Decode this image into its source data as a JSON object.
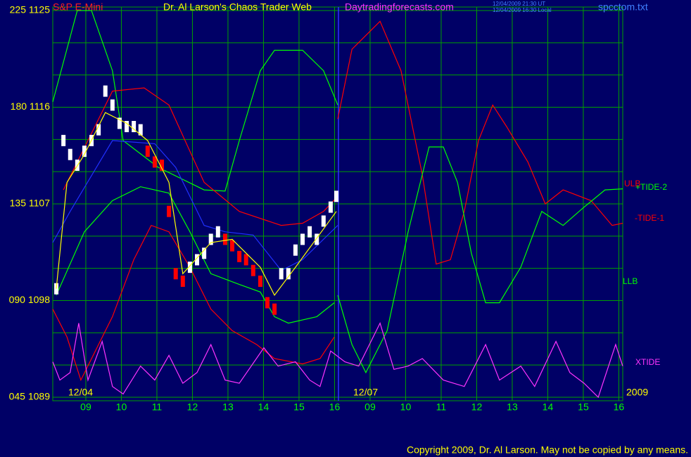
{
  "chart_data": {
    "type": "line",
    "title": "S&P E-Mini",
    "subtitle": "Dr. Al Larson's Chaos Trader Web",
    "site": "Daytradingforecasts.com",
    "timestamp_ut": "12/04/2009 21:30 UT",
    "timestamp_local": "12/04/2009 16:30 Local",
    "file": "spcctom.txt",
    "date_labels": [
      "12/04",
      "12/07"
    ],
    "year_label": "2009",
    "copyright": "Copyright 2009, Dr. Al Larson. May not be copied by any means.",
    "xlim": [
      -0.93,
      15.11
    ],
    "xticks": [
      {
        "value": 0,
        "label": "09"
      },
      {
        "value": 1,
        "label": "10"
      },
      {
        "value": 2,
        "label": "11"
      },
      {
        "value": 3,
        "label": "12"
      },
      {
        "value": 4,
        "label": "13"
      },
      {
        "value": 5,
        "label": "14"
      },
      {
        "value": 6,
        "label": "15"
      },
      {
        "value": 7,
        "label": "16"
      },
      {
        "value": 8,
        "label": "09"
      },
      {
        "value": 9,
        "label": "10"
      },
      {
        "value": 10,
        "label": "11"
      },
      {
        "value": 11,
        "label": "12"
      },
      {
        "value": 12,
        "label": "13"
      },
      {
        "value": 13,
        "label": "14"
      },
      {
        "value": 14,
        "label": "15"
      },
      {
        "value": 15,
        "label": "16"
      }
    ],
    "ylim": [
      1089,
      1125
    ],
    "yticks": [
      {
        "value": 1125,
        "label": "225 1125"
      },
      {
        "value": 1116,
        "label": "180 1116"
      },
      {
        "value": 1107,
        "label": "135 1107"
      },
      {
        "value": 1098,
        "label": "090 1098"
      },
      {
        "value": 1089,
        "label": "045 1089"
      }
    ],
    "ygrid": [
      1089,
      1092,
      1095,
      1098,
      1101,
      1104,
      1107,
      1110,
      1113,
      1116,
      1119,
      1122,
      1125
    ],
    "grid": true,
    "grid_color": "#00a000",
    "series": [
      {
        "color": "#00ff00",
        "style": "line",
        "x": [
          -0.93,
          -0.24,
          0.16,
          0.75,
          1.05,
          2.04,
          3.33,
          3.92,
          4.32,
          4.91,
          5.31,
          6.1,
          6.69,
          7.09
        ],
        "values": [
          1116.5,
          1125,
          1125,
          1119.4,
          1112.9,
          1110.4,
          1108.3,
          1108.2,
          1112.9,
          1119.4,
          1121.3,
          1121.3,
          1119.4,
          1116.2
        ]
      },
      {
        "name": "ULB",
        "color": "#ff0000",
        "style": "line",
        "x": [
          -0.63,
          0.75,
          1.64,
          2.34,
          2.93,
          3.33,
          4.32,
          5.5,
          6.1,
          6.69,
          7.09
        ],
        "values": [
          1108.3,
          1117.5,
          1117.8,
          1116.2,
          1111.9,
          1109.0,
          1106.3,
          1105.0,
          1105.2,
          1106.3,
          1107.7
        ]
      },
      {
        "color": "#ff0000",
        "style": "line",
        "x": [
          -0.93,
          -0.53,
          -0.14,
          0.75,
          1.35,
          1.84,
          2.34,
          2.93,
          3.52,
          4.12,
          4.81,
          5.31,
          6.1,
          6.59,
          6.99
        ],
        "values": [
          1097.2,
          1094.6,
          1090.6,
          1096.5,
          1101.8,
          1105.0,
          1104.4,
          1101.1,
          1097.2,
          1095.2,
          1093.9,
          1092.6,
          1092.1,
          1092.6,
          1094.6
        ]
      },
      {
        "name": "LLB",
        "color": "#00ff00",
        "style": "line",
        "x": [
          -0.83,
          -0.04,
          0.75,
          1.54,
          2.34,
          2.93,
          3.52,
          4.32,
          4.91,
          5.31,
          5.7,
          6.5,
          6.99
        ],
        "values": [
          1098.5,
          1104.4,
          1107.3,
          1108.6,
          1108.0,
          1104.4,
          1100.5,
          1099.5,
          1098.8,
          1096.5,
          1095.9,
          1096.5,
          1097.8
        ]
      },
      {
        "color": "#2030ff",
        "style": "line",
        "x": [
          -0.93,
          -0.44,
          0.75,
          1.94,
          2.53,
          3.33,
          3.92,
          4.71,
          5.5,
          6.1,
          7.09
        ],
        "values": [
          1103.4,
          1106.3,
          1112.9,
          1112.6,
          1110.4,
          1105.0,
          1104.4,
          1104.1,
          1100.8,
          1101.8,
          1105.0
        ]
      },
      {
        "name": "-TIDE-1",
        "color": "#ff0000",
        "style": "line",
        "x": [
          7.09,
          7.49,
          8.28,
          8.87,
          9.47,
          9.86,
          10.26,
          10.65,
          11.05,
          11.45,
          11.84,
          12.44,
          12.93,
          13.43,
          14.22,
          14.81,
          15.11
        ],
        "values": [
          1114.9,
          1121.4,
          1124.0,
          1119.4,
          1109.7,
          1101.4,
          1101.8,
          1106.3,
          1112.9,
          1116.2,
          1114.2,
          1110.9,
          1107.0,
          1108.3,
          1107.3,
          1105.0,
          1105.2
        ]
      },
      {
        "name": "+TIDE-2",
        "color": "#00ff00",
        "style": "line",
        "x": [
          7.09,
          7.49,
          7.88,
          8.48,
          9.07,
          9.66,
          10.06,
          10.46,
          10.85,
          11.25,
          11.64,
          12.24,
          12.83,
          13.43,
          14.02,
          14.61,
          15.11
        ],
        "values": [
          1098.5,
          1093.9,
          1091.3,
          1095.2,
          1104.4,
          1112.3,
          1112.3,
          1109.0,
          1102.4,
          1097.8,
          1097.8,
          1101.1,
          1106.3,
          1105.0,
          1106.7,
          1108.3,
          1108.4
        ]
      },
      {
        "name": "XTIDE",
        "color": "#ff33ff",
        "style": "line",
        "x": [
          -0.93,
          -0.73,
          -0.44,
          -0.2,
          0.06,
          0.46,
          0.75,
          1.05,
          1.54,
          1.94,
          2.34,
          2.73,
          3.13,
          3.52,
          3.92,
          4.32,
          5.01,
          5.41,
          5.9,
          6.3,
          6.59,
          6.89,
          7.29,
          7.68,
          8.28,
          8.67,
          9.07,
          9.47,
          10.06,
          10.65,
          11.25,
          11.64,
          12.24,
          12.63,
          13.23,
          13.62,
          14.02,
          14.42,
          14.91,
          15.11
        ],
        "values": [
          1092.3,
          1090.6,
          1091.3,
          1095.9,
          1090.6,
          1094.2,
          1090.0,
          1089.3,
          1091.9,
          1090.6,
          1092.9,
          1090.3,
          1091.3,
          1093.9,
          1090.6,
          1090.3,
          1093.6,
          1091.9,
          1092.3,
          1090.6,
          1090.0,
          1093.3,
          1092.3,
          1091.9,
          1095.9,
          1091.6,
          1091.9,
          1092.6,
          1090.6,
          1090.0,
          1093.9,
          1090.6,
          1091.9,
          1090.0,
          1094.2,
          1091.3,
          1090.3,
          1089.0,
          1093.9,
          1091.9
        ]
      },
      {
        "color": "#ffffff",
        "style": "bars",
        "x": [
          -0.83,
          -0.63,
          -0.44,
          -0.24,
          -0.04,
          0.16,
          0.36,
          0.55,
          0.75,
          0.95,
          1.15,
          1.35,
          1.54,
          2.93,
          3.13,
          3.33,
          3.52,
          3.72,
          5.5,
          5.7,
          5.9,
          6.1,
          6.3,
          6.5,
          6.69,
          6.89,
          7.05
        ],
        "values": [
          1099.1,
          1112.9,
          1111.6,
          1110.6,
          1111.9,
          1112.9,
          1113.9,
          1117.5,
          1116.2,
          1114.5,
          1114.2,
          1114.2,
          1113.9,
          1101.1,
          1101.8,
          1102.4,
          1103.7,
          1104.4,
          1100.5,
          1100.5,
          1102.7,
          1103.7,
          1104.4,
          1103.7,
          1105.4,
          1106.7,
          1107.7
        ]
      },
      {
        "color": "#ff0000",
        "style": "bars",
        "x": [
          1.74,
          1.94,
          2.14,
          2.34,
          2.53,
          2.73,
          3.92,
          4.12,
          4.32,
          4.51,
          4.71,
          4.91,
          5.11,
          5.31
        ],
        "values": [
          1111.9,
          1110.9,
          1110.6,
          1106.3,
          1100.5,
          1099.8,
          1103.7,
          1103.1,
          1102.1,
          1101.8,
          1100.8,
          1099.8,
          1097.8,
          1097.2
        ]
      },
      {
        "color": "#ffff00",
        "style": "line",
        "x": [
          -0.83,
          -0.53,
          -0.04,
          0.55,
          1.15,
          1.74,
          2.34,
          2.73,
          3.52,
          4.12,
          4.91,
          5.31,
          5.9,
          7.05
        ],
        "values": [
          1099.1,
          1109.0,
          1111.6,
          1115.5,
          1114.5,
          1112.9,
          1109.0,
          1100.5,
          1103.4,
          1103.7,
          1101.1,
          1098.5,
          1101.1,
          1106.3
        ]
      }
    ]
  }
}
